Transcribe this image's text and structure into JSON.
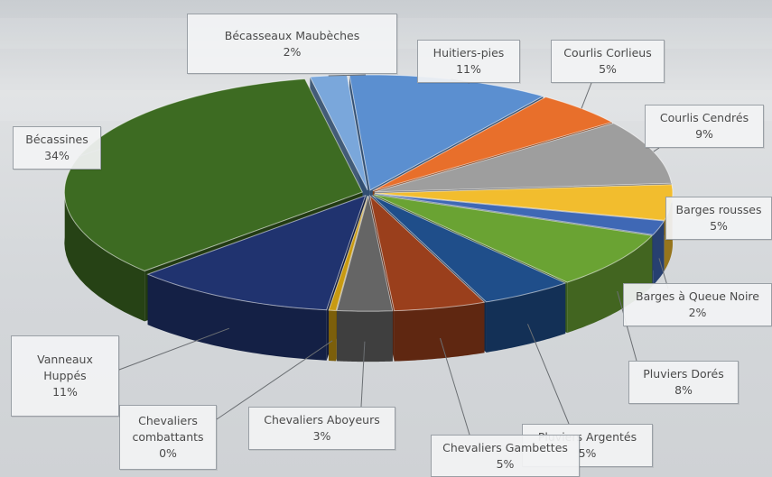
{
  "chart_data": {
    "type": "pie",
    "style": "3d-exploded",
    "slices": [
      {
        "name": "Huitiers-pies",
        "percent_label": "11%",
        "value": 11,
        "color": "#5b8fd0"
      },
      {
        "name": "Courlis Corlieus",
        "percent_label": "5%",
        "value": 5,
        "color": "#e86f2b"
      },
      {
        "name": "Courlis Cendrés",
        "percent_label": "9%",
        "value": 9,
        "color": "#9e9e9e"
      },
      {
        "name": "Barges rousses",
        "percent_label": "5%",
        "value": 5,
        "color": "#f2bd2e"
      },
      {
        "name": "Barges à Queue Noire",
        "percent_label": "2%",
        "value": 2,
        "color": "#3f68b5"
      },
      {
        "name": "Pluviers Dorés",
        "percent_label": "8%",
        "value": 8,
        "color": "#6aa333"
      },
      {
        "name": "Pluviers Argentés",
        "percent_label": "5%",
        "value": 5,
        "color": "#1f4e8a"
      },
      {
        "name": "Chevaliers Gambettes",
        "percent_label": "5%",
        "value": 5,
        "color": "#9a3f1c"
      },
      {
        "name": "Chevaliers Aboyeurs",
        "percent_label": "3%",
        "value": 3,
        "color": "#656565"
      },
      {
        "name": "Chevaliers combattants",
        "percent_label": "0%",
        "value": 0.4,
        "color": "#c89a12"
      },
      {
        "name": "Vanneaux Huppés",
        "percent_label": "11%",
        "value": 11,
        "color": "#20336f"
      },
      {
        "name": "Bécassines",
        "percent_label": "34%",
        "value": 34,
        "color": "#3d6b22"
      },
      {
        "name": "Bécasseaux Maubèches",
        "percent_label": "2%",
        "value": 2,
        "color": "#7aa7db"
      }
    ]
  },
  "labels": [
    {
      "name_lines": "Bécasseaux Maubèches",
      "pct": "2%"
    },
    {
      "name_lines": "Huitiers-pies",
      "pct": "11%"
    },
    {
      "name_lines": "Courlis Corlieus",
      "pct": "5%"
    },
    {
      "name_lines": "Courlis Cendrés",
      "pct": "9%"
    },
    {
      "name_lines": "Barges rousses",
      "pct": "5%"
    },
    {
      "name_lines": "Barges à Queue Noire",
      "pct": "2%"
    },
    {
      "name_lines": "Pluviers Dorés",
      "pct": "8%"
    },
    {
      "name_lines": "Pluviers Argentés",
      "pct": "5%"
    },
    {
      "name_lines": "Chevaliers Gambettes",
      "pct": "5%"
    },
    {
      "name_lines": "Chevaliers Aboyeurs",
      "pct": "3%"
    },
    {
      "name_lines": "Chevaliers\ncombattants",
      "pct": "0%"
    },
    {
      "name_lines": "Vanneaux\nHuppés",
      "pct": "11%"
    },
    {
      "name_lines": "Bécassines",
      "pct": "34%"
    }
  ]
}
